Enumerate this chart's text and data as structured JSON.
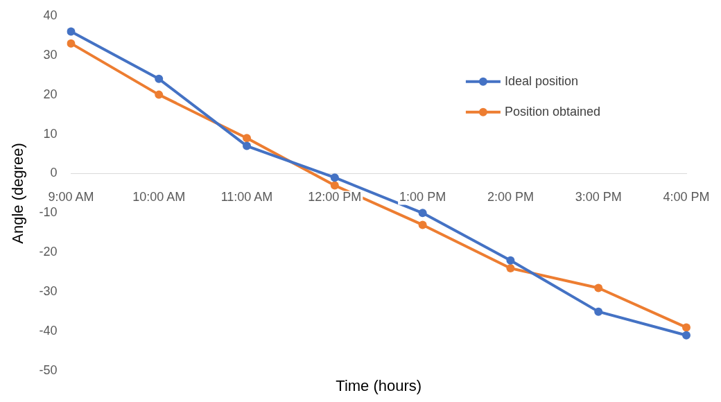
{
  "chart_data": {
    "type": "line",
    "xlabel": "Time (hours)",
    "ylabel": "Angle (degree)",
    "categories": [
      "9:00 AM",
      "10:00 AM",
      "11:00 AM",
      "12:00 PM",
      "1:00 PM",
      "2:00 PM",
      "3:00 PM",
      "4:00 PM"
    ],
    "series": [
      {
        "name": "Ideal position",
        "color": "#4472c4",
        "values": [
          36,
          24,
          7,
          -1,
          -10,
          -22,
          -35,
          -41
        ]
      },
      {
        "name": "Position obtained",
        "color": "#ed7d31",
        "values": [
          33,
          20,
          9,
          -3,
          -13,
          -24,
          -29,
          -39
        ]
      }
    ],
    "ylim": [
      -50,
      40
    ],
    "yticks": [
      -50,
      -40,
      -30,
      -20,
      -10,
      0,
      10,
      20,
      30,
      40
    ],
    "grid": false,
    "legend": "top right",
    "marker": "circle",
    "line_style": "solid"
  }
}
